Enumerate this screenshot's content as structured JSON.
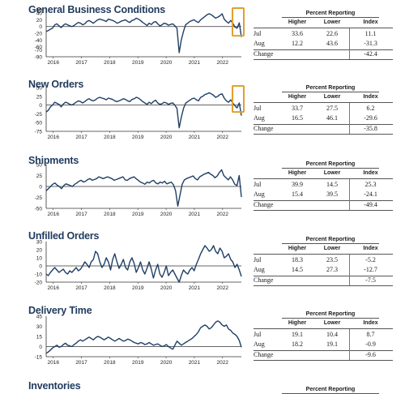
{
  "panels": [
    {
      "title": "General Business Conditions",
      "highlight": true,
      "yticks": [
        50,
        40,
        20,
        0,
        -20,
        -40,
        -60,
        -70,
        -90
      ],
      "ylim": [
        -90,
        50
      ],
      "xticks": [
        "2016",
        "2017",
        "2018",
        "2019",
        "2020",
        "2021",
        "2022"
      ],
      "table": {
        "header": "Percent Reporting",
        "cols": [
          "Higher",
          "Lower",
          "Index"
        ],
        "rows": [
          {
            "label": "Jul",
            "higher": "33.6",
            "lower": "22.6",
            "index": "11.1"
          },
          {
            "label": "Aug",
            "higher": "12.2",
            "lower": "43.6",
            "index": "-31.3"
          }
        ],
        "change_label": "Change",
        "change": "-42.4"
      }
    },
    {
      "title": "New Orders",
      "highlight": true,
      "yticks": [
        50,
        25,
        0,
        -25,
        -50,
        -75
      ],
      "ylim": [
        -75,
        50
      ],
      "xticks": [
        "2016",
        "2017",
        "2018",
        "2019",
        "2020",
        "2021",
        "2022"
      ],
      "table": {
        "header": "Percent Reporting",
        "cols": [
          "Higher",
          "Lower",
          "Index"
        ],
        "rows": [
          {
            "label": "Jul",
            "higher": "33.7",
            "lower": "27.5",
            "index": "6.2"
          },
          {
            "label": "Aug",
            "higher": "16.5",
            "lower": "46.1",
            "index": "-29.6"
          }
        ],
        "change_label": "Change",
        "change": "-35.8"
      }
    },
    {
      "title": "Shipments",
      "highlight": false,
      "yticks": [
        50,
        25,
        0,
        -25,
        -50
      ],
      "ylim": [
        -50,
        50
      ],
      "xticks": [
        "2016",
        "2017",
        "2018",
        "2019",
        "2020",
        "2021",
        "2022"
      ],
      "table": {
        "header": "Percent Reporting",
        "cols": [
          "Higher",
          "Lower",
          "Index"
        ],
        "rows": [
          {
            "label": "Jul",
            "higher": "39.9",
            "lower": "14.5",
            "index": "25.3"
          },
          {
            "label": "Aug",
            "higher": "15.4",
            "lower": "39.5",
            "index": "-24.1"
          }
        ],
        "change_label": "Change",
        "change": "-49.4"
      }
    },
    {
      "title": "Unfilled Orders",
      "highlight": false,
      "yticks": [
        30,
        20,
        10,
        0,
        -10,
        -20
      ],
      "ylim": [
        -20,
        30
      ],
      "xticks": [
        "2016",
        "2017",
        "2018",
        "2019",
        "2020",
        "2021",
        "2022"
      ],
      "table": {
        "header": "Percent Reporting",
        "cols": [
          "Higher",
          "Lower",
          "Index"
        ],
        "rows": [
          {
            "label": "Jul",
            "higher": "18.3",
            "lower": "23.5",
            "index": "-5.2"
          },
          {
            "label": "Aug",
            "higher": "14.5",
            "lower": "27.3",
            "index": "-12.7"
          }
        ],
        "change_label": "Change",
        "change": "-7.5"
      }
    },
    {
      "title": "Delivery Time",
      "highlight": false,
      "yticks": [
        45,
        30,
        15,
        0,
        -15
      ],
      "ylim": [
        -15,
        45
      ],
      "xticks": [
        "2016",
        "2017",
        "2018",
        "2019",
        "2020",
        "2021",
        "2022"
      ],
      "table": {
        "header": "Percent Reporting",
        "cols": [
          "Higher",
          "Lower",
          "Index"
        ],
        "rows": [
          {
            "label": "Jul",
            "higher": "19.1",
            "lower": "10.4",
            "index": "8.7"
          },
          {
            "label": "Aug",
            "higher": "18.2",
            "lower": "19.1",
            "index": "-0.9"
          }
        ],
        "change_label": "Change",
        "change": "-9.6"
      }
    },
    {
      "title": "Inventories",
      "table": {
        "header": "Percent Reporting"
      }
    }
  ],
  "chart_data": [
    {
      "type": "line",
      "title": "General Business Conditions",
      "x_start": "2015-10",
      "x_step": "month",
      "ylim": [
        -90,
        50
      ],
      "values": [
        -15,
        -12,
        -8,
        -5,
        5,
        8,
        2,
        -3,
        4,
        8,
        5,
        2,
        0,
        3,
        8,
        12,
        10,
        5,
        8,
        15,
        18,
        14,
        10,
        15,
        20,
        22,
        20,
        18,
        15,
        22,
        20,
        18,
        15,
        10,
        12,
        16,
        18,
        20,
        15,
        12,
        18,
        20,
        25,
        22,
        18,
        12,
        8,
        3,
        10,
        6,
        12,
        15,
        8,
        2,
        5,
        10,
        8,
        4,
        6,
        8,
        2,
        -5,
        -78,
        -40,
        -15,
        5,
        10,
        15,
        18,
        20,
        15,
        12,
        20,
        25,
        30,
        35,
        38,
        35,
        30,
        25,
        28,
        32,
        38,
        22,
        15,
        10,
        18,
        10,
        -2,
        -5,
        11,
        -31
      ]
    },
    {
      "type": "line",
      "title": "New Orders",
      "x_start": "2015-10",
      "x_step": "month",
      "ylim": [
        -75,
        50
      ],
      "values": [
        -20,
        -15,
        -5,
        0,
        8,
        5,
        2,
        -5,
        3,
        8,
        6,
        2,
        0,
        4,
        8,
        12,
        10,
        6,
        10,
        15,
        18,
        14,
        12,
        15,
        20,
        22,
        20,
        18,
        15,
        20,
        18,
        16,
        12,
        10,
        12,
        15,
        18,
        16,
        12,
        10,
        16,
        18,
        22,
        20,
        15,
        10,
        6,
        2,
        8,
        4,
        10,
        14,
        6,
        2,
        4,
        8,
        6,
        2,
        5,
        6,
        0,
        -10,
        -65,
        -35,
        -10,
        5,
        10,
        14,
        18,
        20,
        15,
        12,
        22,
        25,
        30,
        32,
        35,
        32,
        28,
        22,
        25,
        30,
        32,
        20,
        12,
        8,
        15,
        6,
        -2,
        -8,
        6,
        -30
      ]
    },
    {
      "type": "line",
      "title": "Shipments",
      "x_start": "2015-10",
      "x_step": "month",
      "ylim": [
        -50,
        50
      ],
      "values": [
        -10,
        -5,
        0,
        5,
        8,
        3,
        0,
        -5,
        2,
        6,
        4,
        2,
        0,
        5,
        8,
        12,
        14,
        10,
        12,
        16,
        18,
        14,
        16,
        18,
        22,
        20,
        18,
        20,
        22,
        20,
        18,
        14,
        16,
        18,
        20,
        22,
        15,
        14,
        18,
        20,
        22,
        18,
        14,
        10,
        8,
        5,
        10,
        8,
        12,
        14,
        8,
        6,
        10,
        8,
        12,
        6,
        8,
        10,
        4,
        -10,
        -45,
        -20,
        5,
        15,
        18,
        20,
        22,
        24,
        18,
        15,
        22,
        25,
        28,
        30,
        32,
        28,
        25,
        20,
        24,
        32,
        38,
        25,
        20,
        15,
        22,
        15,
        5,
        2,
        25,
        -24
      ]
    },
    {
      "type": "line",
      "title": "Unfilled Orders",
      "x_start": "2015-10",
      "x_step": "month",
      "ylim": [
        -20,
        30
      ],
      "values": [
        -10,
        -12,
        -8,
        -5,
        -2,
        -5,
        -8,
        -6,
        -4,
        -8,
        -10,
        -6,
        -8,
        -5,
        -2,
        -6,
        -4,
        0,
        5,
        2,
        -2,
        5,
        8,
        18,
        15,
        5,
        -2,
        2,
        10,
        5,
        -5,
        8,
        15,
        5,
        -3,
        2,
        8,
        -2,
        -5,
        5,
        10,
        3,
        -8,
        -2,
        5,
        -5,
        -10,
        -3,
        5,
        -4,
        -15,
        -5,
        2,
        -10,
        -14,
        -8,
        0,
        -12,
        -8,
        -5,
        -10,
        -15,
        -20,
        -12,
        -5,
        -8,
        -10,
        -5,
        -2,
        -6,
        2,
        8,
        15,
        20,
        25,
        22,
        18,
        20,
        25,
        18,
        15,
        22,
        18,
        10,
        12,
        15,
        8,
        5,
        -2,
        2,
        -5,
        -13
      ]
    },
    {
      "type": "line",
      "title": "Delivery Time",
      "x_start": "2015-10",
      "x_step": "month",
      "ylim": [
        -15,
        45
      ],
      "values": [
        -10,
        -8,
        -5,
        -2,
        0,
        2,
        -1,
        0,
        3,
        5,
        2,
        1,
        0,
        3,
        5,
        8,
        10,
        8,
        10,
        12,
        14,
        12,
        10,
        13,
        15,
        14,
        12,
        10,
        12,
        14,
        12,
        10,
        8,
        10,
        12,
        10,
        8,
        9,
        11,
        10,
        8,
        6,
        5,
        4,
        6,
        5,
        3,
        4,
        6,
        4,
        2,
        3,
        4,
        2,
        0,
        1,
        3,
        0,
        -2,
        -4,
        2,
        8,
        5,
        2,
        4,
        6,
        8,
        10,
        12,
        15,
        18,
        22,
        28,
        30,
        32,
        30,
        26,
        28,
        32,
        36,
        38,
        36,
        32,
        30,
        32,
        26,
        24,
        20,
        18,
        15,
        9,
        -1
      ]
    }
  ]
}
